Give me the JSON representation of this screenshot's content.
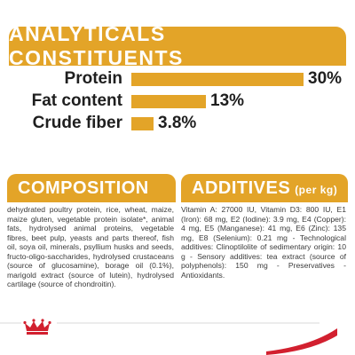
{
  "header": {
    "title": "ANALYTICALS CONSTITUENTS"
  },
  "analytics": [
    {
      "label": "Protein",
      "value_text": "30%",
      "value": 30
    },
    {
      "label": "Fat content",
      "value_text": "13%",
      "value": 13
    },
    {
      "label": "Crude fiber",
      "value_text": "3.8%",
      "value": 3.8
    }
  ],
  "composition": {
    "title": "COMPOSITION",
    "text": "dehydrated poultry protein, rice, wheat, maize, maize gluten, vegetable protein isolate*, animal fats, hydrolysed animal proteins, vegetable fibres, beet pulp, yeasts and parts thereof, fish oil, soya oil, minerals, psyllium husks and seeds, fructo-oligo-saccharides, hydrolysed crustaceans (source of glucosamine), borage oil (0.1%), marigold extract (source of lutein), hydrolysed cartilage (source of chondroitin)."
  },
  "additives": {
    "title": "ADDITIVES",
    "unit": "(per kg)",
    "text": "Vitamin A: 27000 IU, Vitamin D3: 800 IU, E1 (Iron): 68 mg, E2 (Iodine): 3.9 mg, E4 (Copper): 4 mg, E5 (Manganese): 41 mg, E6 (Zinc): 135 mg, E8 (Selenium): 0.21 mg - Technological additives: Clinoptilolite of sedimentary origin: 10 g - Sensory additives: tea extract (source of polyphenols): 150 mg - Preservatives - Antioxidants."
  },
  "colors": {
    "accent": "#e3a428",
    "brand_red": "#d2202f"
  },
  "brand": {
    "logo": "crown-logo"
  }
}
